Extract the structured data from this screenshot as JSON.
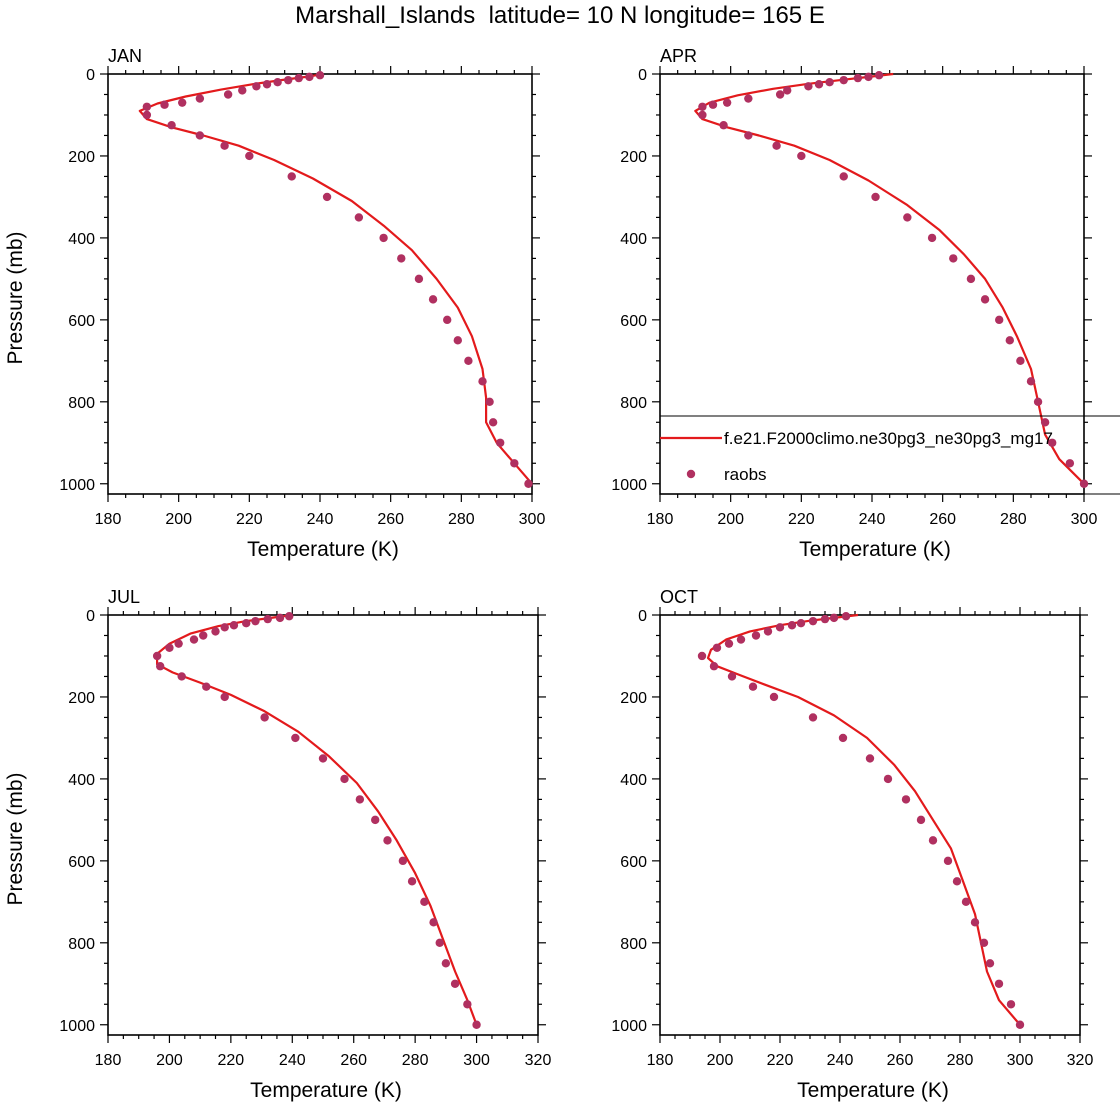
{
  "title": "Marshall_Islands  latitude= 10 N longitude= 165 E",
  "colors": {
    "model_line": "#e31a1c",
    "obs_marker": "#b03060"
  },
  "chart_data": [
    {
      "type": "line",
      "panel_label": "JAN",
      "xlabel": "Temperature (K)",
      "ylabel": "Pressure (mb)",
      "xlim": [
        180,
        300
      ],
      "ylim": [
        0,
        1025
      ],
      "y_reversed": true,
      "xticks": [
        180,
        200,
        220,
        240,
        260,
        280,
        300
      ],
      "yticks": [
        0,
        200,
        400,
        600,
        800,
        1000
      ],
      "series": [
        {
          "name": "f.e21.F2000climo.ne30pg3_ne30pg3_mg17",
          "style": "line",
          "points": [
            [
              241,
              0
            ],
            [
              236,
              7
            ],
            [
              229,
              15
            ],
            [
              221,
              25
            ],
            [
              212,
              38
            ],
            [
              202,
              55
            ],
            [
              194,
              72
            ],
            [
              189,
              90
            ],
            [
              191,
              110
            ],
            [
              198,
              130
            ],
            [
              207,
              150
            ],
            [
              217,
              175
            ],
            [
              227,
              210
            ],
            [
              238,
              255
            ],
            [
              249,
              310
            ],
            [
              258,
              370
            ],
            [
              266,
              430
            ],
            [
              273,
              500
            ],
            [
              279,
              570
            ],
            [
              283,
              640
            ],
            [
              286,
              720
            ],
            [
              287,
              790
            ],
            [
              287,
              850
            ],
            [
              290,
              900
            ],
            [
              295,
              950
            ],
            [
              300,
              1000
            ]
          ]
        },
        {
          "name": "raobs",
          "style": "markers",
          "points": [
            [
              240,
              3
            ],
            [
              237,
              7
            ],
            [
              234,
              10
            ],
            [
              231,
              15
            ],
            [
              228,
              20
            ],
            [
              225,
              25
            ],
            [
              222,
              30
            ],
            [
              218,
              40
            ],
            [
              214,
              50
            ],
            [
              206,
              60
            ],
            [
              201,
              70
            ],
            [
              196,
              75
            ],
            [
              191,
              80
            ],
            [
              191,
              100
            ],
            [
              198,
              125
            ],
            [
              206,
              150
            ],
            [
              213,
              175
            ],
            [
              220,
              200
            ],
            [
              232,
              250
            ],
            [
              242,
              300
            ],
            [
              251,
              350
            ],
            [
              258,
              400
            ],
            [
              263,
              450
            ],
            [
              268,
              500
            ],
            [
              272,
              550
            ],
            [
              276,
              600
            ],
            [
              279,
              650
            ],
            [
              282,
              700
            ],
            [
              286,
              750
            ],
            [
              288,
              800
            ],
            [
              289,
              850
            ],
            [
              291,
              900
            ],
            [
              295,
              950
            ],
            [
              299,
              1000
            ]
          ]
        }
      ]
    },
    {
      "type": "line",
      "panel_label": "APR",
      "xlabel": "Temperature (K)",
      "ylabel": "",
      "xlim": [
        180,
        300
      ],
      "ylim": [
        0,
        1025
      ],
      "y_reversed": true,
      "xticks": [
        180,
        200,
        220,
        240,
        260,
        280,
        300
      ],
      "yticks": [
        0,
        200,
        400,
        600,
        800,
        1000
      ],
      "legend": {
        "position": "lower-right",
        "entries": [
          "f.e21.F2000climo.ne30pg3_ne30pg3_mg17",
          "raobs"
        ]
      },
      "series": [
        {
          "name": "f.e21.F2000climo.ne30pg3_ne30pg3_mg17",
          "style": "line",
          "points": [
            [
              246,
              0
            ],
            [
              240,
              6
            ],
            [
              232,
              14
            ],
            [
              222,
              24
            ],
            [
              212,
              36
            ],
            [
              202,
              52
            ],
            [
              194,
              70
            ],
            [
              190,
              90
            ],
            [
              192,
              110
            ],
            [
              199,
              130
            ],
            [
              208,
              150
            ],
            [
              218,
              175
            ],
            [
              228,
              210
            ],
            [
              239,
              260
            ],
            [
              250,
              320
            ],
            [
              259,
              380
            ],
            [
              266,
              440
            ],
            [
              272,
              500
            ],
            [
              277,
              570
            ],
            [
              281,
              640
            ],
            [
              285,
              720
            ],
            [
              287,
              800
            ],
            [
              289,
              880
            ],
            [
              293,
              940
            ],
            [
              300,
              1000
            ]
          ]
        },
        {
          "name": "raobs",
          "style": "markers",
          "points": [
            [
              242,
              3
            ],
            [
              239,
              7
            ],
            [
              236,
              10
            ],
            [
              232,
              15
            ],
            [
              228,
              20
            ],
            [
              225,
              25
            ],
            [
              222,
              30
            ],
            [
              216,
              40
            ],
            [
              214,
              50
            ],
            [
              205,
              60
            ],
            [
              199,
              70
            ],
            [
              195,
              75
            ],
            [
              192,
              80
            ],
            [
              192,
              100
            ],
            [
              198,
              125
            ],
            [
              205,
              150
            ],
            [
              213,
              175
            ],
            [
              220,
              200
            ],
            [
              232,
              250
            ],
            [
              241,
              300
            ],
            [
              250,
              350
            ],
            [
              257,
              400
            ],
            [
              263,
              450
            ],
            [
              268,
              500
            ],
            [
              272,
              550
            ],
            [
              276,
              600
            ],
            [
              279,
              650
            ],
            [
              282,
              700
            ],
            [
              285,
              750
            ],
            [
              287,
              800
            ],
            [
              289,
              850
            ],
            [
              291,
              900
            ],
            [
              296,
              950
            ],
            [
              300,
              1000
            ]
          ]
        }
      ]
    },
    {
      "type": "line",
      "panel_label": "JUL",
      "xlabel": "Temperature (K)",
      "ylabel": "Pressure (mb)",
      "xlim": [
        180,
        320
      ],
      "ylim": [
        0,
        1025
      ],
      "y_reversed": true,
      "xticks": [
        180,
        200,
        220,
        240,
        260,
        280,
        300,
        320
      ],
      "yticks": [
        0,
        200,
        400,
        600,
        800,
        1000
      ],
      "series": [
        {
          "name": "f.e21.F2000climo.ne30pg3_ne30pg3_mg17",
          "style": "line",
          "points": [
            [
              240,
              0
            ],
            [
              233,
              7
            ],
            [
              225,
              15
            ],
            [
              216,
              27
            ],
            [
              207,
              45
            ],
            [
              200,
              70
            ],
            [
              196,
              95
            ],
            [
              196,
              120
            ],
            [
              201,
              140
            ],
            [
              210,
              165
            ],
            [
              220,
              195
            ],
            [
              231,
              235
            ],
            [
              242,
              285
            ],
            [
              252,
              345
            ],
            [
              261,
              410
            ],
            [
              268,
              480
            ],
            [
              274,
              550
            ],
            [
              280,
              630
            ],
            [
              285,
              710
            ],
            [
              289,
              790
            ],
            [
              293,
              870
            ],
            [
              297,
              940
            ],
            [
              300,
              1000
            ]
          ]
        },
        {
          "name": "raobs",
          "style": "markers",
          "points": [
            [
              239,
              3
            ],
            [
              236,
              7
            ],
            [
              232,
              10
            ],
            [
              228,
              15
            ],
            [
              225,
              20
            ],
            [
              221,
              25
            ],
            [
              218,
              30
            ],
            [
              215,
              40
            ],
            [
              211,
              50
            ],
            [
              208,
              60
            ],
            [
              203,
              70
            ],
            [
              200,
              80
            ],
            [
              196,
              100
            ],
            [
              197,
              125
            ],
            [
              204,
              150
            ],
            [
              212,
              175
            ],
            [
              218,
              200
            ],
            [
              231,
              250
            ],
            [
              241,
              300
            ],
            [
              250,
              350
            ],
            [
              257,
              400
            ],
            [
              262,
              450
            ],
            [
              267,
              500
            ],
            [
              271,
              550
            ],
            [
              276,
              600
            ],
            [
              279,
              650
            ],
            [
              283,
              700
            ],
            [
              286,
              750
            ],
            [
              288,
              800
            ],
            [
              290,
              850
            ],
            [
              293,
              900
            ],
            [
              297,
              950
            ],
            [
              300,
              1000
            ]
          ]
        }
      ]
    },
    {
      "type": "line",
      "panel_label": "OCT",
      "xlabel": "Temperature (K)",
      "ylabel": "",
      "xlim": [
        180,
        320
      ],
      "ylim": [
        0,
        1025
      ],
      "y_reversed": true,
      "xticks": [
        180,
        200,
        220,
        240,
        260,
        280,
        300,
        320
      ],
      "yticks": [
        0,
        200,
        400,
        600,
        800,
        1000
      ],
      "series": [
        {
          "name": "f.e21.F2000climo.ne30pg3_ne30pg3_mg17",
          "style": "line",
          "points": [
            [
              246,
              0
            ],
            [
              239,
              6
            ],
            [
              230,
              14
            ],
            [
              220,
              25
            ],
            [
              210,
              40
            ],
            [
              202,
              60
            ],
            [
              197,
              85
            ],
            [
              196,
              105
            ],
            [
              199,
              125
            ],
            [
              206,
              145
            ],
            [
              215,
              170
            ],
            [
              226,
              200
            ],
            [
              238,
              245
            ],
            [
              249,
              300
            ],
            [
              258,
              365
            ],
            [
              265,
              430
            ],
            [
              271,
              500
            ],
            [
              277,
              570
            ],
            [
              281,
              650
            ],
            [
              285,
              730
            ],
            [
              287,
              800
            ],
            [
              289,
              870
            ],
            [
              293,
              940
            ],
            [
              300,
              1000
            ]
          ]
        },
        {
          "name": "raobs",
          "style": "markers",
          "points": [
            [
              242,
              3
            ],
            [
              238,
              7
            ],
            [
              235,
              10
            ],
            [
              231,
              15
            ],
            [
              227,
              20
            ],
            [
              224,
              25
            ],
            [
              220,
              30
            ],
            [
              216,
              40
            ],
            [
              212,
              50
            ],
            [
              207,
              60
            ],
            [
              203,
              70
            ],
            [
              199,
              80
            ],
            [
              194,
              100
            ],
            [
              198,
              125
            ],
            [
              204,
              150
            ],
            [
              211,
              175
            ],
            [
              218,
              200
            ],
            [
              231,
              250
            ],
            [
              241,
              300
            ],
            [
              250,
              350
            ],
            [
              256,
              400
            ],
            [
              262,
              450
            ],
            [
              267,
              500
            ],
            [
              271,
              550
            ],
            [
              276,
              600
            ],
            [
              279,
              650
            ],
            [
              282,
              700
            ],
            [
              285,
              750
            ],
            [
              288,
              800
            ],
            [
              290,
              850
            ],
            [
              293,
              900
            ],
            [
              297,
              950
            ],
            [
              300,
              1000
            ]
          ]
        }
      ]
    }
  ]
}
